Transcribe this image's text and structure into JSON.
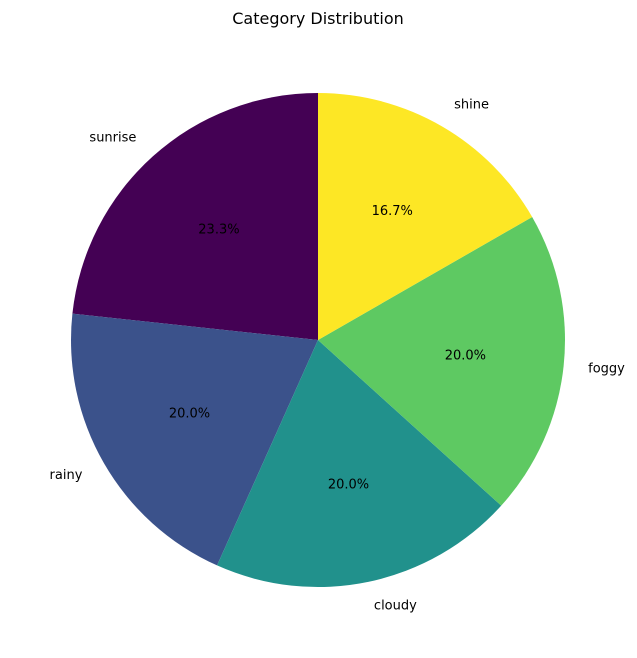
{
  "chart_data": {
    "type": "pie",
    "title": "Category Distribution",
    "start_angle_deg": 90,
    "direction": "counterclockwise",
    "slices": [
      {
        "label": "sunrise",
        "value": 23.3,
        "pct_label": "23.3%",
        "color": "#440154"
      },
      {
        "label": "rainy",
        "value": 20.0,
        "pct_label": "20.0%",
        "color": "#3b528b"
      },
      {
        "label": "cloudy",
        "value": 20.0,
        "pct_label": "20.0%",
        "color": "#21918c"
      },
      {
        "label": "foggy",
        "value": 20.0,
        "pct_label": "20.0%",
        "color": "#5ec962"
      },
      {
        "label": "shine",
        "value": 16.7,
        "pct_label": "16.7%",
        "color": "#fde725"
      }
    ]
  }
}
